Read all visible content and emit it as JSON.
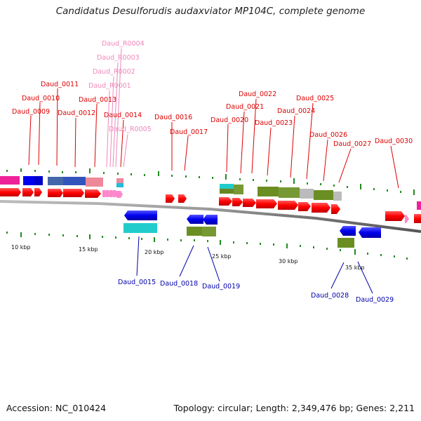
{
  "title": "Candidatus Desulforudis audaxviator MP104C, complete genome",
  "footer": {
    "accession": "Accession: NC_010424",
    "summary": "Topology: circular; Length: 2,349,476 bp; Genes: 2,211"
  },
  "colors": {
    "forward_label": "#dd0000",
    "reverse_label": "#0000aa",
    "rna_label": "#ee88bb",
    "backbone": "#888888",
    "tick": "#228b22"
  },
  "scale_labels": [
    "10 kbp",
    "15 kbp",
    "20 kbp",
    "25 kbp",
    "30 kbp",
    "35 kbp"
  ],
  "forward_genes": [
    "Daud_0009",
    "Daud_0010",
    "Daud_0011",
    "Daud_0012",
    "Daud_0013",
    "Daud_0014",
    "Daud_0016",
    "Daud_0017",
    "Daud_0020",
    "Daud_0021",
    "Daud_0022",
    "Daud_0023",
    "Daud_0024",
    "Daud_0025",
    "Daud_0026",
    "Daud_0027",
    "Daud_0030"
  ],
  "rna_genes": [
    "Daud_R0004",
    "Daud_R0003",
    "Daud_R0002",
    "Daud_R0001",
    "Daud_R0005"
  ],
  "reverse_genes": [
    "Daud_0015",
    "Daud_0018",
    "Daud_0019",
    "Daud_0028",
    "Daud_0029"
  ]
}
